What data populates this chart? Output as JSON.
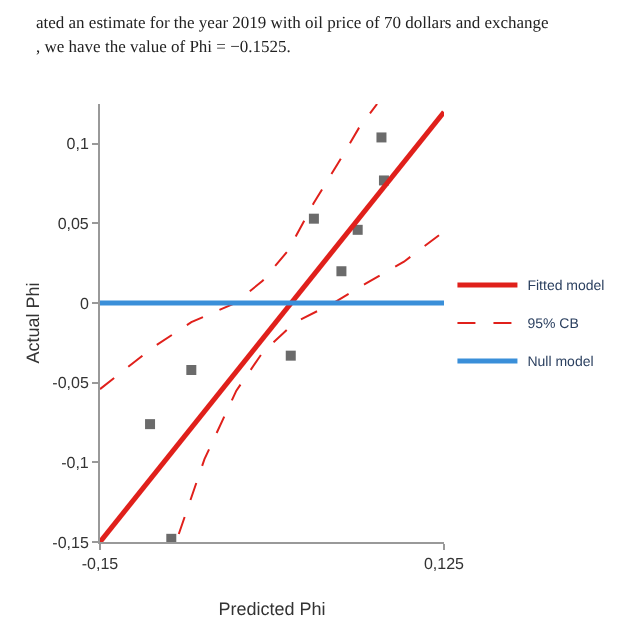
{
  "chart_data": {
    "type": "scatter",
    "xlabel": "Predicted Phi",
    "ylabel": "Actual Phi",
    "annotations": [
      "ated an estimate for the year 2019 with oil price of 70 dollars and exchange",
      ", we have the value of Phi = −0.1525."
    ],
    "xlim": [
      -0.15,
      0.125
    ],
    "xticks": [
      {
        "value": -0.15,
        "label": "-0,15"
      },
      {
        "value": 0.125,
        "label": "0,125"
      }
    ],
    "ylim": [
      -0.15,
      0.125
    ],
    "yticks": [
      {
        "value": -0.15,
        "label": "-0,15"
      },
      {
        "value": -0.1,
        "label": "-0,1"
      },
      {
        "value": -0.05,
        "label": "-0,05"
      },
      {
        "value": 0,
        "label": "0"
      },
      {
        "value": 0.05,
        "label": "0,05"
      },
      {
        "value": 0.1,
        "label": "0,1"
      }
    ],
    "legend": "right",
    "series": [
      {
        "marker": "square",
        "color": "#6b6b6b",
        "x": [
          -0.11,
          -0.077,
          -0.093,
          0.0025,
          0.021,
          0.043,
          0.056,
          0.075,
          0.077
        ],
        "values": [
          -0.076,
          -0.042,
          -0.148,
          -0.033,
          0.053,
          0.02,
          0.046,
          0.104,
          0.077
        ]
      },
      {
        "type": "line",
        "name": "Fitted model",
        "color": "#e0201b",
        "line_style": "solid",
        "x": [
          -0.15,
          0.125
        ],
        "values": [
          -0.15,
          0.12
        ]
      },
      {
        "type": "line",
        "name": "95% CB",
        "color": "#e0201b",
        "line_style": "dashed",
        "x": [
          -0.15,
          -0.108,
          -0.077,
          -0.042,
          -0.02,
          0.0004,
          0.021,
          0.042,
          0.057,
          0.0715
        ],
        "values": [
          -0.054,
          -0.028,
          -0.012,
          0,
          0.014,
          0.033,
          0.063,
          0.09,
          0.11,
          0.125
        ]
      },
      {
        "type": "line",
        "color": "#e0201b",
        "line_style": "dashed",
        "x": [
          -0.087,
          -0.0665,
          -0.041,
          -0.02,
          0.006,
          0.0365,
          0.062,
          0.093,
          0.125
        ],
        "values": [
          -0.145,
          -0.098,
          -0.055,
          -0.031,
          -0.012,
          0,
          0.012,
          0.026,
          0.045
        ]
      },
      {
        "type": "line",
        "name": "Null model",
        "color": "#3a8fd9",
        "line_style": "solid",
        "x": [
          -0.15,
          0.125
        ],
        "values": [
          0,
          0
        ]
      }
    ]
  }
}
